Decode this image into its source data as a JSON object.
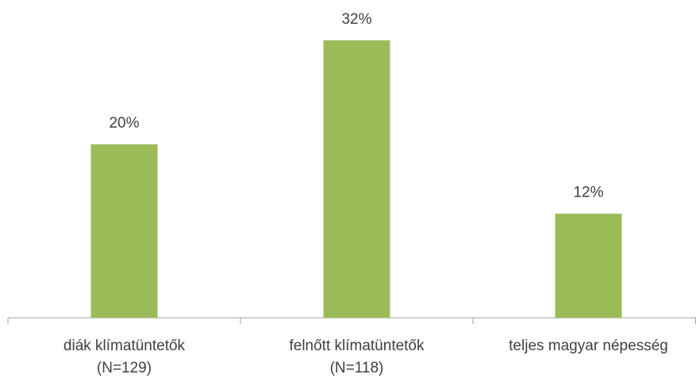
{
  "chart_data": {
    "type": "bar",
    "categories": [
      "diák klímatüntetők\n(N=129)",
      "felnőtt klímatüntetők\n(N=118)",
      "teljes magyar népesség"
    ],
    "values": [
      20,
      32,
      12
    ],
    "value_labels": [
      "20%",
      "32%",
      "12%"
    ],
    "color": "#9bbb59",
    "ylim": [
      0,
      35
    ]
  }
}
